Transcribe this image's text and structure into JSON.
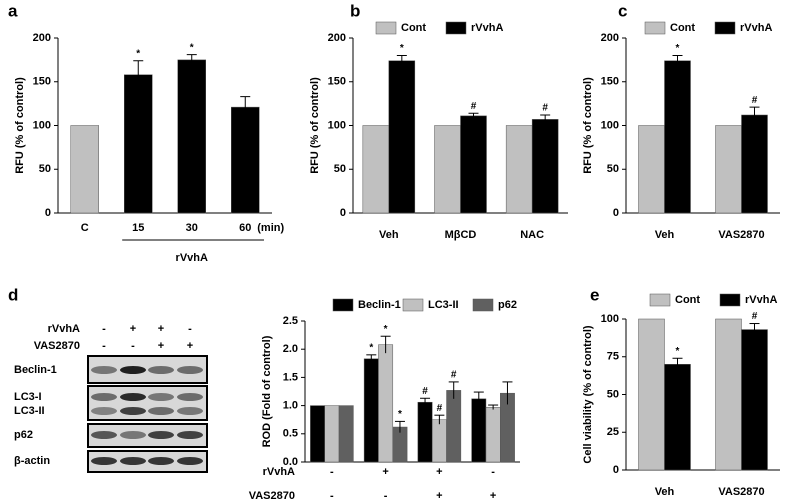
{
  "chart_data": [
    {
      "type": "bar",
      "panel_label": "a",
      "ylabel": "RFU (% of control)",
      "categories": [
        "C",
        "15",
        "30",
        "60"
      ],
      "x_unit": "(min)",
      "group_label": "rVvhA",
      "values": [
        100,
        158,
        175,
        121
      ],
      "errors": [
        null,
        16,
        6,
        12
      ],
      "colors": [
        "#c0c0c0",
        "#000000",
        "#000000",
        "#000000"
      ],
      "markers": [
        null,
        "*",
        "*",
        null
      ],
      "ylim": [
        0,
        200
      ],
      "yticks": [
        0,
        50,
        100,
        150,
        200
      ]
    },
    {
      "type": "grouped-bar",
      "panel_label": "b",
      "ylabel": "RFU (% of control)",
      "categories": [
        "Veh",
        "MβCD",
        "NAC"
      ],
      "series": [
        {
          "name": "Cont",
          "color": "#c0c0c0",
          "values": [
            100,
            100,
            100
          ]
        },
        {
          "name": "rVvhA",
          "color": "#000000",
          "values": [
            174,
            111,
            107
          ],
          "errors": [
            6,
            3,
            5
          ],
          "markers": [
            "*",
            "#",
            "#"
          ]
        }
      ],
      "ylim": [
        0,
        200
      ],
      "yticks": [
        0,
        50,
        100,
        150,
        200
      ]
    },
    {
      "type": "grouped-bar",
      "panel_label": "c",
      "ylabel": "RFU (% of control)",
      "categories": [
        "Veh",
        "VAS2870"
      ],
      "series": [
        {
          "name": "Cont",
          "color": "#c0c0c0",
          "values": [
            100,
            100
          ]
        },
        {
          "name": "rVvhA",
          "color": "#000000",
          "values": [
            174,
            112
          ],
          "errors": [
            6,
            9
          ],
          "markers": [
            "*",
            "#"
          ]
        }
      ],
      "ylim": [
        0,
        200
      ],
      "yticks": [
        0,
        50,
        100,
        150,
        200
      ]
    },
    {
      "type": "grouped-bar",
      "panel_label": "d",
      "ylabel": "ROD (Fold of control)",
      "condition_rows": [
        {
          "label": "rVvhA",
          "signs": [
            "-",
            "+",
            "+",
            "-"
          ]
        },
        {
          "label": "VAS2870",
          "signs": [
            "-",
            "-",
            "+",
            "+"
          ]
        }
      ],
      "series": [
        {
          "name": "Beclin-1",
          "color": "#000000",
          "values": [
            1.0,
            1.83,
            1.06,
            1.12
          ],
          "errors": [
            null,
            0.07,
            0.07,
            0.12
          ],
          "markers": [
            null,
            "*",
            "#",
            null
          ]
        },
        {
          "name": "LC3-II",
          "color": "#c0c0c0",
          "values": [
            1.0,
            2.08,
            0.75,
            0.97
          ],
          "errors": [
            null,
            0.15,
            0.08,
            0.04
          ],
          "markers": [
            null,
            "*",
            "#",
            null
          ]
        },
        {
          "name": "p62",
          "color": "#606060",
          "values": [
            1.0,
            0.62,
            1.27,
            1.22
          ],
          "errors": [
            null,
            0.1,
            0.15,
            0.2
          ],
          "markers": [
            null,
            "*",
            "#",
            null
          ]
        }
      ],
      "ylim": [
        0,
        2.5
      ],
      "yticks": [
        {
          "value": 0,
          "label": "0.0"
        },
        0.5,
        {
          "value": 1,
          "label": "1.0"
        },
        1.5,
        {
          "value": 2,
          "label": "2.0"
        },
        2.5
      ]
    },
    {
      "type": "grouped-bar",
      "panel_label": "e",
      "ylabel": "Cell viability (% of control)",
      "categories": [
        "Veh",
        "VAS2870"
      ],
      "series": [
        {
          "name": "Cont",
          "color": "#c0c0c0",
          "values": [
            100,
            100
          ]
        },
        {
          "name": "rVvhA",
          "color": "#000000",
          "values": [
            70,
            93
          ],
          "errors": [
            4,
            4
          ],
          "markers": [
            "*",
            "#"
          ]
        }
      ],
      "ylim": [
        0,
        100
      ],
      "yticks": [
        0,
        25,
        50,
        75,
        100
      ]
    }
  ],
  "blot": {
    "rows": [
      {
        "label": "rVvhA",
        "signs": [
          "-",
          "+",
          "+",
          "-"
        ]
      },
      {
        "label": "VAS2870",
        "signs": [
          "-",
          "-",
          "+",
          "+"
        ]
      }
    ],
    "bands": [
      "Beclin-1",
      "LC3-I",
      "LC3-II",
      "p62",
      "β-actin"
    ]
  }
}
